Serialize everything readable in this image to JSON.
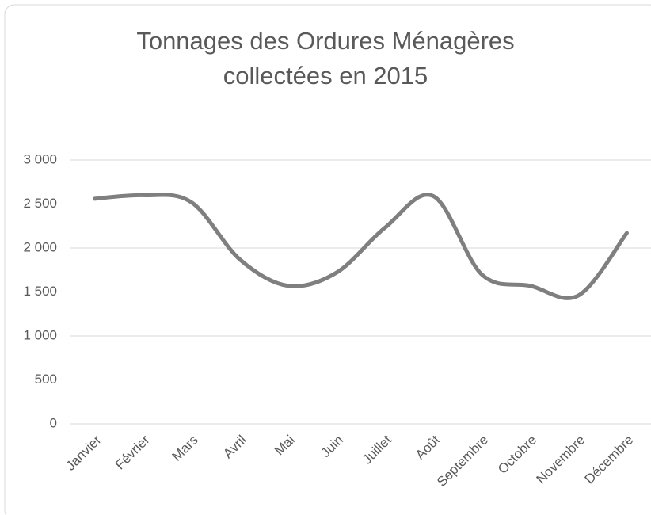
{
  "chart_data": {
    "type": "line",
    "title": "Tonnages des Ordures Ménagères collectées en 2015",
    "categories": [
      "Janvier",
      "Février",
      "Mars",
      "Avril",
      "Mai",
      "Juin",
      "Juillet",
      "Août",
      "Septembre",
      "Octobre",
      "Novembre",
      "Décembre"
    ],
    "values": [
      2560,
      2600,
      2520,
      1870,
      1570,
      1720,
      2230,
      2590,
      1700,
      1570,
      1460,
      2170
    ],
    "color": "#7f7f7f",
    "smooth": true,
    "ylim": [
      0,
      3000
    ],
    "yticks": [
      0,
      500,
      {
        "value": 1000,
        "label": "1 000"
      },
      {
        "value": 1500,
        "label": "1 500"
      },
      {
        "value": 2000,
        "label": "2 000"
      },
      {
        "value": 2500,
        "label": "2 500"
      },
      {
        "value": 3000,
        "label": "3 000"
      }
    ],
    "grid": true
  }
}
